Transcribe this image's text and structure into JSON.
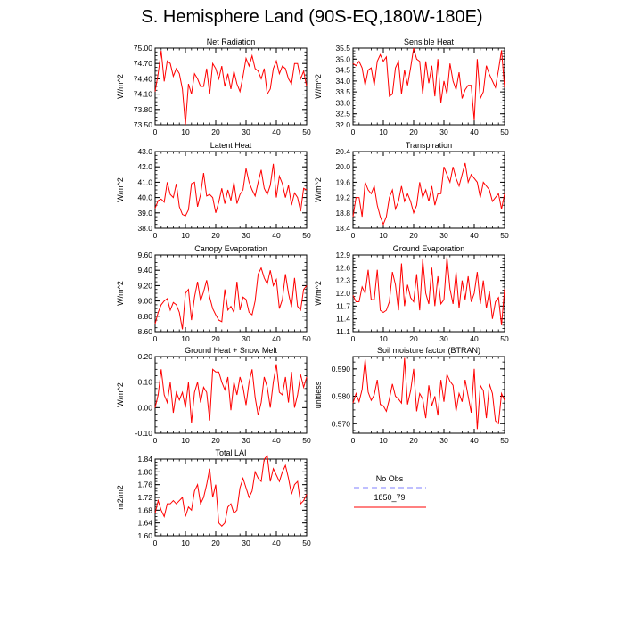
{
  "title": "S. Hemisphere Land (90S-EQ,180W-180E)",
  "colors": {
    "series": "#ff0000",
    "obs": "#9999ff",
    "axis": "#000000"
  },
  "legend": {
    "obs_label": "No Obs",
    "model_label": "1850_79"
  },
  "chart_data": [
    {
      "type": "line",
      "title": "Net Radiation",
      "ylabel": "W/m^2",
      "xlim": [
        0,
        50
      ],
      "ylim": [
        73.5,
        75.0
      ],
      "yticks": [
        "73.50",
        "73.80",
        "74.10",
        "74.40",
        "74.70",
        "75.00"
      ],
      "xticks": [
        "0",
        "10",
        "20",
        "30",
        "40",
        "50"
      ],
      "series": [
        {
          "values": [
            74.15,
            74.5,
            74.95,
            74.35,
            74.75,
            74.7,
            74.45,
            74.6,
            74.5,
            74.2,
            73.5,
            74.3,
            74.1,
            74.5,
            74.4,
            74.25,
            74.25,
            74.6,
            74.1,
            74.7,
            74.6,
            74.4,
            74.65,
            74.25,
            74.5,
            74.2,
            74.55,
            74.3,
            74.15,
            74.45,
            74.8,
            74.65,
            74.85,
            74.6,
            74.55,
            74.4,
            74.6,
            74.1,
            74.2,
            74.6,
            74.75,
            74.5,
            74.65,
            74.6,
            74.4,
            74.3,
            74.7,
            74.7,
            74.4,
            74.55,
            74.25
          ]
        }
      ]
    },
    {
      "type": "line",
      "title": "Sensible Heat",
      "ylabel": "W/m^2",
      "xlim": [
        0,
        50
      ],
      "ylim": [
        32.0,
        35.5
      ],
      "yticks": [
        "32.0",
        "32.5",
        "33.0",
        "33.5",
        "34.0",
        "34.5",
        "35.0",
        "35.5"
      ],
      "xticks": [
        "0",
        "10",
        "20",
        "30",
        "40",
        "50"
      ],
      "series": [
        {
          "values": [
            34.8,
            34.7,
            34.9,
            34.6,
            33.8,
            34.5,
            34.6,
            33.8,
            34.9,
            35.2,
            34.9,
            35.1,
            33.3,
            33.4,
            34.6,
            34.9,
            33.4,
            34.5,
            33.8,
            34.6,
            35.5,
            35.0,
            34.9,
            33.4,
            34.9,
            33.9,
            34.7,
            33.3,
            35.0,
            33.0,
            34.0,
            33.4,
            34.8,
            34.0,
            33.6,
            34.4,
            33.2,
            33.6,
            33.8,
            33.8,
            32.2,
            35.0,
            33.2,
            33.5,
            34.7,
            34.3,
            34.0,
            33.7,
            34.5,
            35.4,
            33.7
          ]
        }
      ]
    },
    {
      "type": "line",
      "title": "Latent Heat",
      "ylabel": "W/m^2",
      "xlim": [
        0,
        50
      ],
      "ylim": [
        38.0,
        43.0
      ],
      "yticks": [
        "38.0",
        "39.0",
        "40.0",
        "41.0",
        "42.0",
        "43.0"
      ],
      "xticks": [
        "0",
        "10",
        "20",
        "30",
        "40",
        "50"
      ],
      "series": [
        {
          "values": [
            39.3,
            39.8,
            39.9,
            39.7,
            41.0,
            40.2,
            40.0,
            40.9,
            39.4,
            38.9,
            38.8,
            39.2,
            40.9,
            41.0,
            39.4,
            40.2,
            41.6,
            40.1,
            40.2,
            40.0,
            39.0,
            39.7,
            40.6,
            39.6,
            40.5,
            39.8,
            41.0,
            39.6,
            40.2,
            40.5,
            41.9,
            41.0,
            40.5,
            40.1,
            41.0,
            41.8,
            40.6,
            40.2,
            40.8,
            42.2,
            40.0,
            41.4,
            40.9,
            40.0,
            40.8,
            39.5,
            40.3,
            40.0,
            39.1,
            40.6,
            40.5
          ]
        }
      ]
    },
    {
      "type": "line",
      "title": "Transpiration",
      "ylabel": "W/m^2",
      "xlim": [
        0,
        50
      ],
      "ylim": [
        18.4,
        20.4
      ],
      "yticks": [
        "18.4",
        "18.8",
        "19.2",
        "19.6",
        "20.0",
        "20.4"
      ],
      "xticks": [
        "0",
        "10",
        "20",
        "30",
        "40",
        "50"
      ],
      "series": [
        {
          "values": [
            18.7,
            19.2,
            19.2,
            18.7,
            19.6,
            19.4,
            19.3,
            19.5,
            19.0,
            18.7,
            18.5,
            18.7,
            19.2,
            19.4,
            18.9,
            19.1,
            19.5,
            19.1,
            19.3,
            19.1,
            18.8,
            19.0,
            19.6,
            19.2,
            19.4,
            19.1,
            19.5,
            19.0,
            19.3,
            19.3,
            20.0,
            19.8,
            19.6,
            20.0,
            19.7,
            19.5,
            19.8,
            20.1,
            19.6,
            19.8,
            19.7,
            19.6,
            19.2,
            19.6,
            19.5,
            19.4,
            19.1,
            19.2,
            19.3,
            18.9,
            19.3
          ]
        }
      ]
    },
    {
      "type": "line",
      "title": "Canopy Evaporation",
      "ylabel": "W/m^2",
      "xlim": [
        0,
        50
      ],
      "ylim": [
        8.6,
        9.6
      ],
      "yticks": [
        "8.60",
        "8.80",
        "9.00",
        "9.20",
        "9.40",
        "9.60"
      ],
      "xticks": [
        "0",
        "10",
        "20",
        "30",
        "40",
        "50"
      ],
      "series": [
        {
          "values": [
            8.7,
            8.85,
            8.95,
            9.0,
            9.03,
            8.88,
            8.98,
            8.95,
            8.85,
            8.63,
            9.1,
            9.15,
            8.75,
            9.05,
            9.25,
            9.0,
            9.12,
            9.27,
            9.05,
            8.9,
            8.82,
            8.75,
            8.73,
            9.15,
            8.88,
            8.93,
            8.85,
            9.25,
            8.88,
            9.05,
            9.02,
            8.85,
            8.82,
            9.0,
            9.35,
            9.43,
            9.3,
            9.22,
            9.4,
            9.2,
            9.28,
            8.9,
            9.02,
            9.35,
            9.1,
            8.92,
            9.3,
            8.93,
            8.88,
            9.15,
            9.2
          ]
        }
      ]
    },
    {
      "type": "line",
      "title": "Ground Evaporation",
      "ylabel": "W/m^2",
      "xlim": [
        0,
        50
      ],
      "ylim": [
        11.1,
        12.9
      ],
      "yticks": [
        "11.1",
        "11.4",
        "11.7",
        "12.0",
        "12.3",
        "12.6",
        "12.9"
      ],
      "xticks": [
        "0",
        "10",
        "20",
        "30",
        "40",
        "50"
      ],
      "series": [
        {
          "values": [
            11.95,
            11.8,
            11.8,
            12.15,
            12.0,
            12.55,
            11.85,
            11.85,
            12.55,
            11.6,
            11.55,
            11.6,
            11.8,
            12.5,
            12.2,
            11.6,
            12.7,
            11.7,
            12.2,
            11.9,
            11.8,
            12.45,
            11.6,
            12.8,
            12.0,
            11.75,
            12.6,
            11.7,
            12.4,
            11.75,
            11.85,
            12.85,
            12.1,
            11.75,
            12.5,
            11.65,
            12.3,
            11.85,
            12.4,
            11.8,
            12.0,
            12.5,
            11.75,
            12.3,
            11.65,
            12.05,
            11.4,
            11.8,
            11.9,
            11.25,
            12.1
          ]
        }
      ]
    },
    {
      "type": "line",
      "title": "Ground Heat + Snow Melt",
      "ylabel": "W/m^2",
      "xlim": [
        0,
        50
      ],
      "ylim": [
        -0.1,
        0.2
      ],
      "yticks": [
        "-0.10",
        "0.00",
        "0.10",
        "0.20"
      ],
      "xticks": [
        "0",
        "10",
        "20",
        "30",
        "40",
        "50"
      ],
      "series": [
        {
          "values": [
            0.0,
            0.05,
            0.15,
            0.05,
            0.02,
            0.1,
            -0.02,
            0.06,
            0.03,
            0.06,
            0.0,
            0.1,
            -0.06,
            0.06,
            0.1,
            0.02,
            0.08,
            0.06,
            -0.05,
            0.15,
            0.14,
            0.14,
            0.1,
            0.07,
            0.12,
            -0.01,
            0.1,
            0.05,
            0.12,
            0.08,
            0.01,
            0.1,
            0.15,
            0.04,
            -0.03,
            0.02,
            0.12,
            0.08,
            0.0,
            0.1,
            0.17,
            0.06,
            0.05,
            0.12,
            0.02,
            0.14,
            0.0,
            0.05,
            0.13,
            0.08,
            0.12
          ]
        }
      ]
    },
    {
      "type": "line",
      "title": "Soil moisture factor (BTRAN)",
      "ylabel": "unitless",
      "xlim": [
        0,
        50
      ],
      "ylim": [
        0.5665,
        0.5945
      ],
      "yticks": [
        "0.570",
        "0.580",
        "0.590"
      ],
      "xticks": [
        "0",
        "10",
        "20",
        "30",
        "40",
        "50"
      ],
      "series": [
        {
          "values": [
            0.5775,
            0.581,
            0.578,
            0.5825,
            0.5935,
            0.5815,
            0.5785,
            0.5805,
            0.586,
            0.577,
            0.5765,
            0.5745,
            0.579,
            0.5845,
            0.58,
            0.579,
            0.5775,
            0.594,
            0.577,
            0.582,
            0.59,
            0.5745,
            0.581,
            0.579,
            0.572,
            0.584,
            0.5765,
            0.58,
            0.573,
            0.586,
            0.578,
            0.588,
            0.5855,
            0.584,
            0.5745,
            0.581,
            0.578,
            0.586,
            0.58,
            0.574,
            0.59,
            0.568,
            0.584,
            0.582,
            0.572,
            0.5845,
            0.581,
            0.571,
            0.57,
            0.581,
            0.5785
          ]
        }
      ]
    },
    {
      "type": "line",
      "title": "Total LAI",
      "ylabel": "m2/m2",
      "xlim": [
        0,
        50
      ],
      "ylim": [
        1.6,
        1.84
      ],
      "yticks": [
        "1.60",
        "1.64",
        "1.68",
        "1.72",
        "1.76",
        "1.80",
        "1.84"
      ],
      "xticks": [
        "0",
        "10",
        "20",
        "30",
        "40",
        "50"
      ],
      "series": [
        {
          "values": [
            1.67,
            1.71,
            1.68,
            1.66,
            1.7,
            1.7,
            1.71,
            1.7,
            1.71,
            1.72,
            1.66,
            1.69,
            1.68,
            1.74,
            1.76,
            1.7,
            1.72,
            1.76,
            1.81,
            1.72,
            1.76,
            1.64,
            1.63,
            1.64,
            1.69,
            1.7,
            1.67,
            1.68,
            1.75,
            1.78,
            1.75,
            1.72,
            1.74,
            1.8,
            1.78,
            1.77,
            1.84,
            1.85,
            1.77,
            1.81,
            1.79,
            1.77,
            1.8,
            1.82,
            1.78,
            1.73,
            1.76,
            1.77,
            1.7,
            1.71,
            1.73
          ]
        }
      ]
    }
  ]
}
